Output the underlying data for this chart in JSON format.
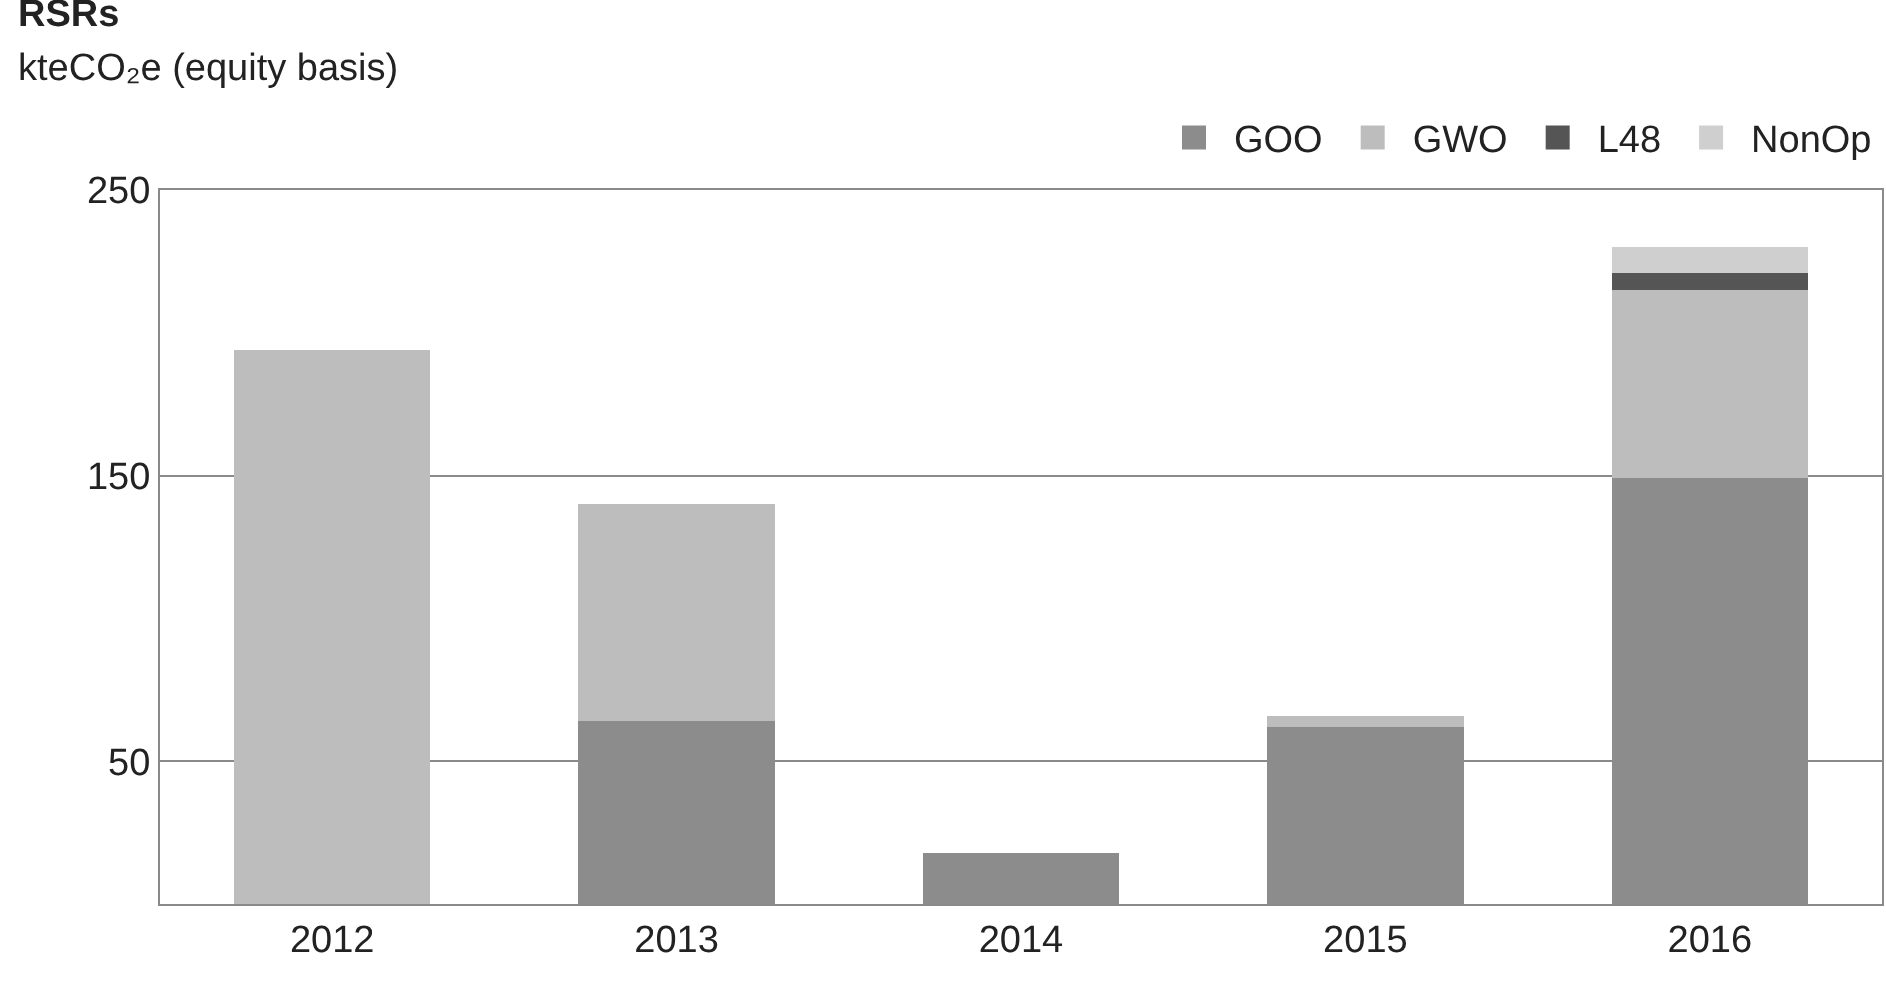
{
  "chart_data": {
    "type": "bar",
    "title": "RSRs",
    "subtitle": "kteCO₂e (equity basis)",
    "categories": [
      "2012",
      "2013",
      "2014",
      "2015",
      "2016"
    ],
    "stacked": true,
    "series": [
      {
        "name": "GOO",
        "color": "#8c8c8c",
        "values": [
          null,
          64,
          18,
          62,
          149
        ]
      },
      {
        "name": "GWO",
        "color": "#bdbdbd",
        "values": [
          194,
          76,
          null,
          4,
          66
        ]
      },
      {
        "name": "L48",
        "color": "#555555",
        "values": [
          null,
          null,
          null,
          null,
          6
        ]
      },
      {
        "name": "NonOp",
        "color": "#cfcfcf",
        "values": [
          null,
          null,
          null,
          null,
          9
        ]
      }
    ],
    "ylim": [
      0,
      250
    ],
    "yticks": [
      50,
      150,
      250
    ],
    "grid": "y",
    "legend": "top right"
  }
}
